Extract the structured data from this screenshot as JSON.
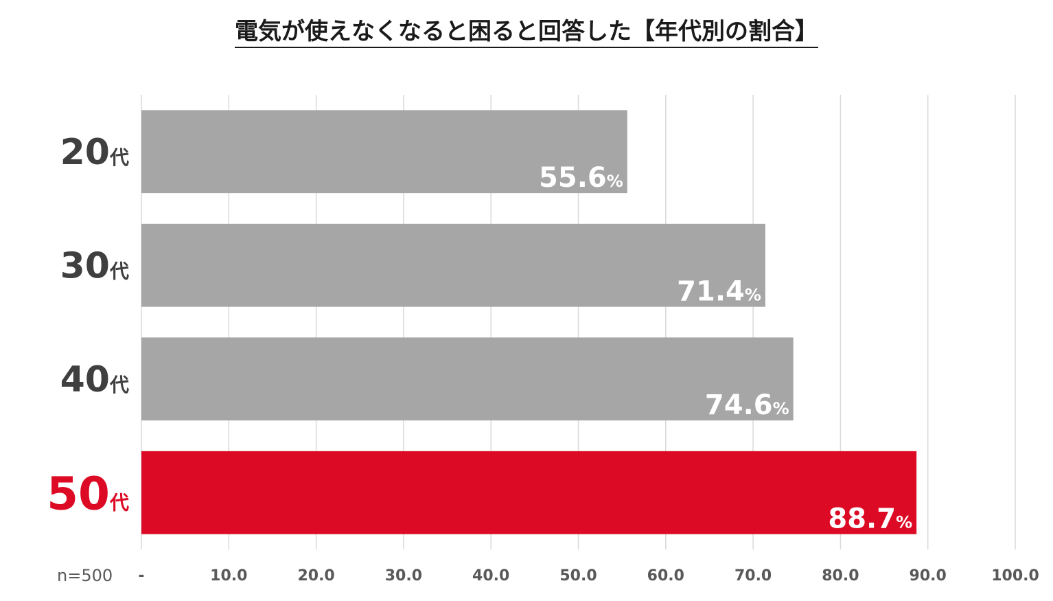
{
  "chart_data": {
    "type": "bar",
    "orientation": "horizontal",
    "title": "電気が使えなくなると困ると回答した【年代別の割合】",
    "categories": [
      {
        "number": "20",
        "suffix": "代"
      },
      {
        "number": "30",
        "suffix": "代"
      },
      {
        "number": "40",
        "suffix": "代"
      },
      {
        "number": "50",
        "suffix": "代"
      }
    ],
    "values": [
      55.6,
      71.4,
      74.6,
      88.7
    ],
    "value_labels": [
      {
        "number": "55.6",
        "unit": "%"
      },
      {
        "number": "71.4",
        "unit": "%"
      },
      {
        "number": "74.6",
        "unit": "%"
      },
      {
        "number": "88.7",
        "unit": "%"
      }
    ],
    "highlight_index": 3,
    "xlim": [
      0,
      100
    ],
    "x_ticks": [
      {
        "value": 0,
        "label": "-"
      },
      {
        "value": 10,
        "label": "10.0"
      },
      {
        "value": 20,
        "label": "20.0"
      },
      {
        "value": 30,
        "label": "30.0"
      },
      {
        "value": 40,
        "label": "40.0"
      },
      {
        "value": 50,
        "label": "50.0"
      },
      {
        "value": 60,
        "label": "60.0"
      },
      {
        "value": 70,
        "label": "70.0"
      },
      {
        "value": 80,
        "label": "80.0"
      },
      {
        "value": 90,
        "label": "90.0"
      },
      {
        "value": 100,
        "label": "100.0"
      }
    ],
    "grid": true,
    "note": "n=500",
    "colors": {
      "bar": "#a6a6a6",
      "highlight": "#dc0a24",
      "category_text": "#3f3f3f",
      "highlight_text": "#dc0a24",
      "value_label": "#ffffff",
      "grid": "#d9d9d9",
      "tick_text": "#595959"
    }
  }
}
